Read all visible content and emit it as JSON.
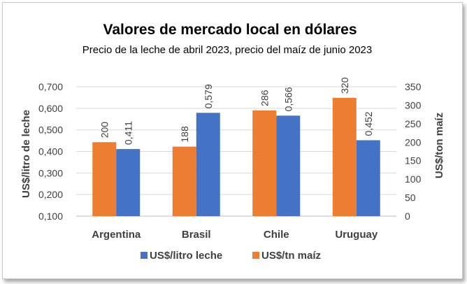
{
  "chart_data": {
    "type": "bar",
    "title": "Valores de mercado local en dólares",
    "subtitle": "Precio de la leche de abril 2023, precio del maíz de junio 2023",
    "categories": [
      "Argentina",
      "Brasil",
      "Chile",
      "Uruguay"
    ],
    "series": [
      {
        "name": "US$/litro leche",
        "axis": "left",
        "color": "#4472c4",
        "values": [
          0.411,
          0.579,
          0.566,
          0.452
        ],
        "labels": [
          "0,411",
          "0,579",
          "0,566",
          "0,452"
        ]
      },
      {
        "name": "US$/tn maíz",
        "axis": "right",
        "color": "#ed7d31",
        "values": [
          200,
          188,
          286,
          320
        ],
        "labels": [
          "200",
          "188",
          "286",
          "320"
        ]
      }
    ],
    "y_left": {
      "label": "US$/litro de leche",
      "min": 0.1,
      "max": 0.7,
      "ticks": [
        "0,100",
        "0,200",
        "0,300",
        "0,400",
        "0,500",
        "0,600",
        "0,700"
      ]
    },
    "y_right": {
      "label": "US$/ton maíz",
      "min": 0,
      "max": 350,
      "ticks": [
        "0",
        "50",
        "100",
        "150",
        "200",
        "250",
        "300",
        "350"
      ]
    },
    "grid": true,
    "legend_position": "bottom"
  }
}
